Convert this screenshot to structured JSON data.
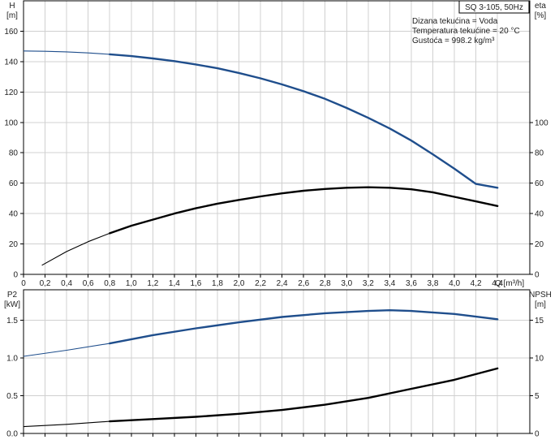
{
  "chart_data": [
    {
      "type": "line",
      "x_axis": {
        "label": "Q [m³/h]",
        "lim": [
          0,
          4.7
        ],
        "ticks": [
          0,
          0.2,
          0.4,
          0.6,
          0.8,
          1.0,
          1.2,
          1.4,
          1.6,
          1.8,
          2.0,
          2.2,
          2.4,
          2.6,
          2.8,
          3.0,
          3.2,
          3.4,
          3.6,
          3.8,
          4.0,
          4.2,
          4.4
        ],
        "tick_labels": [
          "0",
          "0,2",
          "0,4",
          "0,6",
          "0,8",
          "1,0",
          "1,2",
          "1,4",
          "1,6",
          "1,8",
          "2,0",
          "2,2",
          "2,4",
          "2,6",
          "2,8",
          "3,0",
          "3,2",
          "3,4",
          "3,6",
          "3,8",
          "4,0",
          "4,2",
          "4,4"
        ]
      },
      "y_left": {
        "label_line1": "H",
        "label_line2": "[m]",
        "lim": [
          0,
          180
        ],
        "ticks": [
          0,
          20,
          40,
          60,
          80,
          100,
          120,
          140,
          160
        ],
        "tick_labels": [
          "0",
          "20",
          "40",
          "60",
          "80",
          "100",
          "120",
          "140",
          "160"
        ]
      },
      "y_right": {
        "label_line1": "eta",
        "label_line2": "[%]",
        "lim": [
          0,
          180
        ],
        "ticks": [
          0,
          20,
          40,
          60,
          80,
          100
        ],
        "tick_labels": [
          "0",
          "20",
          "40",
          "60",
          "80",
          "100"
        ]
      },
      "grid": true,
      "legend_box": "SQ 3-105, 50Hz",
      "annotations": [
        "Dizana tekućina = Voda",
        "Temperatura tekućine = 20 °C",
        "Gustoća = 998.2 kg/m³"
      ],
      "series": [
        {
          "axis": "left",
          "color": "#1f4e8c",
          "thin_until": 0.88,
          "x": [
            0,
            0.2,
            0.4,
            0.6,
            0.8,
            1.0,
            1.2,
            1.4,
            1.6,
            1.8,
            2.0,
            2.2,
            2.4,
            2.6,
            2.8,
            3.0,
            3.2,
            3.4,
            3.6,
            3.8,
            4.0,
            4.2,
            4.4
          ],
          "y": [
            147,
            146.8,
            146.4,
            145.7,
            144.8,
            143.6,
            142.1,
            140.3,
            138.1,
            135.6,
            132.5,
            129,
            125,
            120.5,
            115.5,
            109.5,
            103,
            96,
            88,
            79,
            69.5,
            59.5,
            57
          ]
        },
        {
          "axis": "right",
          "color": "#000000",
          "thin_until": 0.88,
          "x": [
            0.17,
            0.4,
            0.6,
            0.8,
            1.0,
            1.2,
            1.4,
            1.6,
            1.8,
            2.0,
            2.2,
            2.4,
            2.6,
            2.8,
            3.0,
            3.2,
            3.4,
            3.6,
            3.8,
            4.0,
            4.2,
            4.4
          ],
          "y": [
            6,
            15,
            21.5,
            27,
            32,
            36,
            40,
            43.5,
            46.5,
            49,
            51.3,
            53.3,
            55,
            56.2,
            57,
            57.3,
            57,
            56,
            54,
            51,
            48,
            45
          ]
        }
      ]
    },
    {
      "type": "line",
      "x_axis": {
        "lim": [
          0,
          4.7
        ],
        "ticks": [
          0,
          0.2,
          0.4,
          0.6,
          0.8,
          1.0,
          1.2,
          1.4,
          1.6,
          1.8,
          2.0,
          2.2,
          2.4,
          2.6,
          2.8,
          3.0,
          3.2,
          3.4,
          3.6,
          3.8,
          4.0,
          4.2,
          4.4
        ]
      },
      "y_left": {
        "label_line1": "P2",
        "label_line2": "[kW]",
        "lim": [
          0,
          1.9
        ],
        "ticks": [
          0,
          0.5,
          1.0,
          1.5
        ],
        "tick_labels": [
          "0.0",
          "0.5",
          "1.0",
          "1.5"
        ]
      },
      "y_right": {
        "label_line1": "NPSH",
        "label_line2": "[m]",
        "lim": [
          0,
          19
        ],
        "ticks": [
          0,
          5,
          10,
          15
        ],
        "tick_labels": [
          "0",
          "5",
          "10",
          "15"
        ]
      },
      "grid": true,
      "series": [
        {
          "axis": "left",
          "color": "#1f4e8c",
          "thin_until": 0.88,
          "x": [
            0,
            0.4,
            0.8,
            1.2,
            1.6,
            2.0,
            2.4,
            2.8,
            3.2,
            3.4,
            3.6,
            4.0,
            4.4
          ],
          "y": [
            1.02,
            1.1,
            1.19,
            1.3,
            1.39,
            1.47,
            1.54,
            1.59,
            1.62,
            1.63,
            1.62,
            1.58,
            1.51
          ]
        },
        {
          "axis": "right",
          "color": "#000000",
          "thin_until": 0.88,
          "x": [
            0,
            0.4,
            0.8,
            1.2,
            1.6,
            2.0,
            2.4,
            2.8,
            3.2,
            3.6,
            4.0,
            4.4
          ],
          "y": [
            0.9,
            1.2,
            1.6,
            1.9,
            2.2,
            2.6,
            3.1,
            3.8,
            4.7,
            5.9,
            7.1,
            8.6
          ]
        }
      ]
    }
  ]
}
